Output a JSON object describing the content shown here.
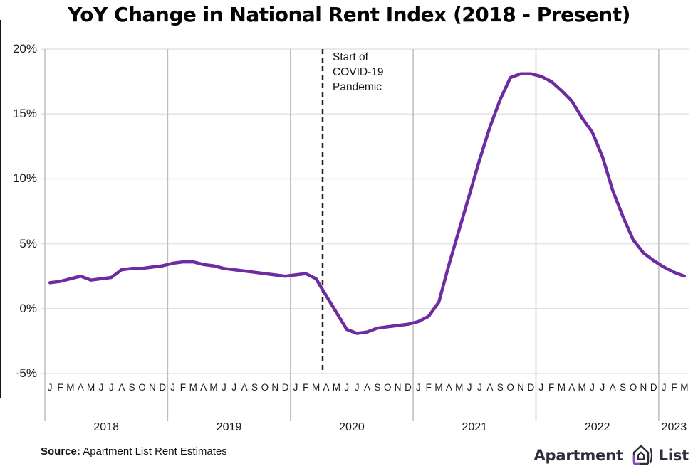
{
  "title": "YoY Change in National Rent Index (2018 - Present)",
  "source": {
    "label": "Source:",
    "text": "Apartment List Rent Estimates"
  },
  "logo": {
    "text_left": "Apartment",
    "text_right": "List",
    "icon": "apartment-list-house-icon"
  },
  "colors": {
    "line": "#6d2da0",
    "grid": "#e4e4e4",
    "year_separator": "#bdbdbd",
    "dashed_line": "#222222",
    "text": "#1a1a1a",
    "logo_accent": "#8b46c7",
    "logo_ink": "#2f2a38"
  },
  "chart_data": {
    "type": "line",
    "title": "YoY Change in National Rent Index (2018 - Present)",
    "xlabel": "",
    "ylabel": "",
    "ylim": [
      -5,
      20
    ],
    "grid": "horizontal gridlines at 5% steps, vertical separators at year boundaries",
    "legend": "none",
    "yticks": [
      {
        "label": "20%",
        "value": 20
      },
      {
        "label": "15%",
        "value": 15
      },
      {
        "label": "10%",
        "value": 10
      },
      {
        "label": "5%",
        "value": 5
      },
      {
        "label": "0%",
        "value": 0
      },
      {
        "label": "-5%",
        "value": -5
      }
    ],
    "years": [
      {
        "label": "2018",
        "months": [
          "J",
          "F",
          "M",
          "A",
          "M",
          "J",
          "J",
          "A",
          "S",
          "O",
          "N",
          "D"
        ]
      },
      {
        "label": "2019",
        "months": [
          "J",
          "F",
          "M",
          "A",
          "M",
          "J",
          "J",
          "A",
          "S",
          "O",
          "N",
          "D"
        ]
      },
      {
        "label": "2020",
        "months": [
          "J",
          "F",
          "M",
          "A",
          "M",
          "J",
          "J",
          "A",
          "S",
          "O",
          "N",
          "D"
        ]
      },
      {
        "label": "2021",
        "months": [
          "J",
          "F",
          "M",
          "A",
          "M",
          "J",
          "J",
          "A",
          "S",
          "O",
          "N",
          "D"
        ]
      },
      {
        "label": "2022",
        "months": [
          "J",
          "F",
          "M",
          "A",
          "M",
          "J",
          "J",
          "A",
          "S",
          "O",
          "N",
          "D"
        ]
      },
      {
        "label": "2023",
        "months": [
          "J",
          "F",
          "M"
        ]
      }
    ],
    "series": [
      {
        "name": "National Rent Index YoY Change (%)",
        "color": "#6d2da0",
        "values": [
          2.0,
          2.1,
          2.3,
          2.5,
          2.2,
          2.3,
          2.4,
          3.0,
          3.1,
          3.1,
          3.2,
          3.3,
          3.5,
          3.6,
          3.6,
          3.4,
          3.3,
          3.1,
          3.0,
          2.9,
          2.8,
          2.7,
          2.6,
          2.5,
          2.6,
          2.7,
          2.3,
          1.0,
          -0.3,
          -1.6,
          -1.9,
          -1.8,
          -1.5,
          -1.4,
          -1.3,
          -1.2,
          -1.0,
          -0.6,
          0.5,
          3.4,
          6.1,
          8.8,
          11.5,
          14.0,
          16.1,
          17.8,
          18.1,
          18.1,
          17.9,
          17.5,
          16.8,
          16.0,
          14.7,
          13.6,
          11.7,
          9.1,
          7.1,
          5.3,
          4.3,
          3.7,
          3.2,
          2.8,
          2.5
        ]
      }
    ],
    "annotations": [
      {
        "text": "Start of\nCOVID-19\nPandemic",
        "position": "mid-March 2020",
        "month_index": 26.65,
        "style": "vertical dashed line with label to the right"
      }
    ]
  }
}
